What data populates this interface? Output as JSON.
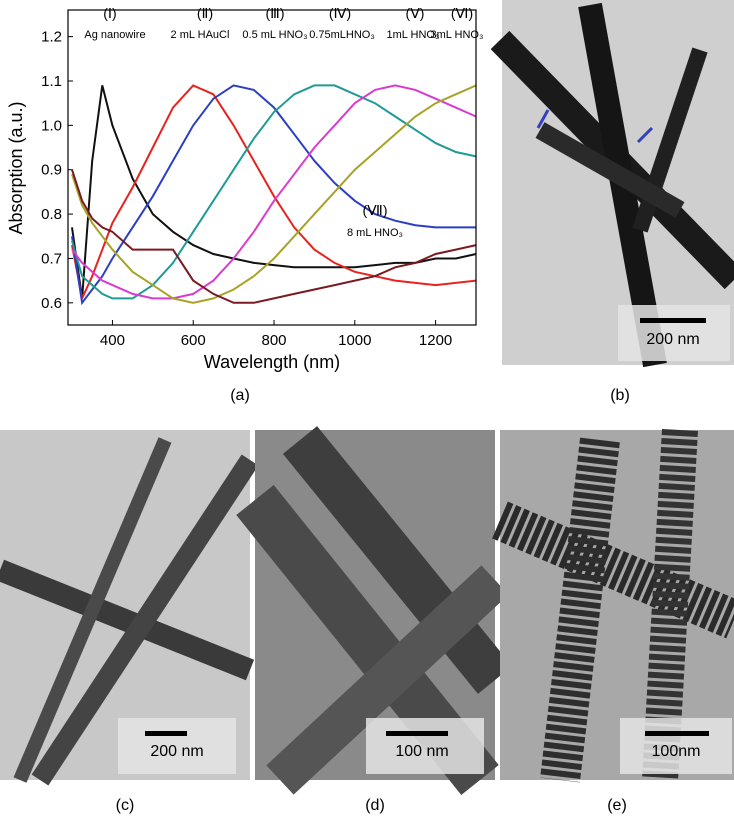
{
  "chart_data": {
    "type": "line",
    "xlabel": "Wavelength (nm)",
    "ylabel": "Absorption (a.u.)",
    "x": [
      300,
      325,
      350,
      375,
      400,
      450,
      500,
      550,
      600,
      650,
      700,
      750,
      800,
      850,
      900,
      950,
      1000,
      1050,
      1100,
      1150,
      1200,
      1250,
      1300
    ],
    "xlim": [
      290,
      1300
    ],
    "xticks": [
      400,
      600,
      800,
      1000,
      1200
    ],
    "ylim": [
      0.55,
      1.26
    ],
    "yticks": [
      0.6,
      0.7,
      0.8,
      0.9,
      {
        "value": 1,
        "label": "1.0"
      },
      1.1,
      1.2
    ],
    "series": [
      {
        "name": "(Ⅰ)",
        "label": "Ag nanowire",
        "color": "#111111",
        "values": [
          0.77,
          0.61,
          0.92,
          1.09,
          1.0,
          0.88,
          0.8,
          0.76,
          0.73,
          0.71,
          0.7,
          0.69,
          0.685,
          0.68,
          0.68,
          0.68,
          0.68,
          0.685,
          0.69,
          0.69,
          0.7,
          0.7,
          0.71
        ]
      },
      {
        "name": "(Ⅱ)",
        "label": "2 mL HAuCl",
        "color": "#e8231f",
        "values": [
          0.73,
          0.61,
          0.66,
          0.72,
          0.78,
          0.86,
          0.95,
          1.04,
          1.09,
          1.07,
          1.0,
          0.92,
          0.84,
          0.77,
          0.72,
          0.69,
          0.67,
          0.66,
          0.65,
          0.645,
          0.64,
          0.645,
          0.65
        ]
      },
      {
        "name": "(Ⅲ)",
        "label": "0.5 mL HNO₃",
        "color": "#2b3fc4",
        "values": [
          0.75,
          0.6,
          0.63,
          0.66,
          0.7,
          0.77,
          0.84,
          0.92,
          1.0,
          1.06,
          1.09,
          1.08,
          1.04,
          0.98,
          0.92,
          0.87,
          0.83,
          0.8,
          0.785,
          0.775,
          0.77,
          0.77,
          0.77
        ]
      },
      {
        "name": "(Ⅳ)",
        "label": "0.75mLHNO₃",
        "color": "#1f9a94",
        "values": [
          0.74,
          0.66,
          0.64,
          0.62,
          0.61,
          0.61,
          0.64,
          0.69,
          0.76,
          0.83,
          0.9,
          0.97,
          1.03,
          1.07,
          1.09,
          1.09,
          1.07,
          1.05,
          1.02,
          0.99,
          0.96,
          0.94,
          0.93
        ]
      },
      {
        "name": "(Ⅴ)",
        "label": "1mL HNO₃",
        "color": "#d93ad0",
        "values": [
          0.72,
          0.69,
          0.67,
          0.65,
          0.64,
          0.62,
          0.61,
          0.61,
          0.62,
          0.65,
          0.7,
          0.76,
          0.83,
          0.89,
          0.95,
          1.0,
          1.05,
          1.08,
          1.09,
          1.08,
          1.06,
          1.04,
          1.02
        ]
      },
      {
        "name": "(Ⅵ)",
        "label": "3mL HNO₃",
        "color": "#a6a328",
        "values": [
          0.89,
          0.82,
          0.78,
          0.75,
          0.72,
          0.67,
          0.64,
          0.61,
          0.6,
          0.61,
          0.63,
          0.66,
          0.7,
          0.75,
          0.8,
          0.85,
          0.9,
          0.94,
          0.98,
          1.02,
          1.05,
          1.07,
          1.09
        ]
      },
      {
        "name": "(Ⅶ)",
        "label": "8 mL HNO₃",
        "color": "#7a1a22",
        "values": [
          0.9,
          0.83,
          0.79,
          0.77,
          0.76,
          0.72,
          0.72,
          0.72,
          0.65,
          0.62,
          0.6,
          0.6,
          0.61,
          0.62,
          0.63,
          0.64,
          0.65,
          0.66,
          0.68,
          0.69,
          0.71,
          0.72,
          0.73
        ]
      }
    ]
  },
  "panels": [
    "(a)",
    "(b)",
    "(c)",
    "(d)",
    "(e)"
  ],
  "scale_bars": {
    "b": "200 nm",
    "c": "200 nm",
    "d": "100 nm",
    "e": "100nm"
  }
}
